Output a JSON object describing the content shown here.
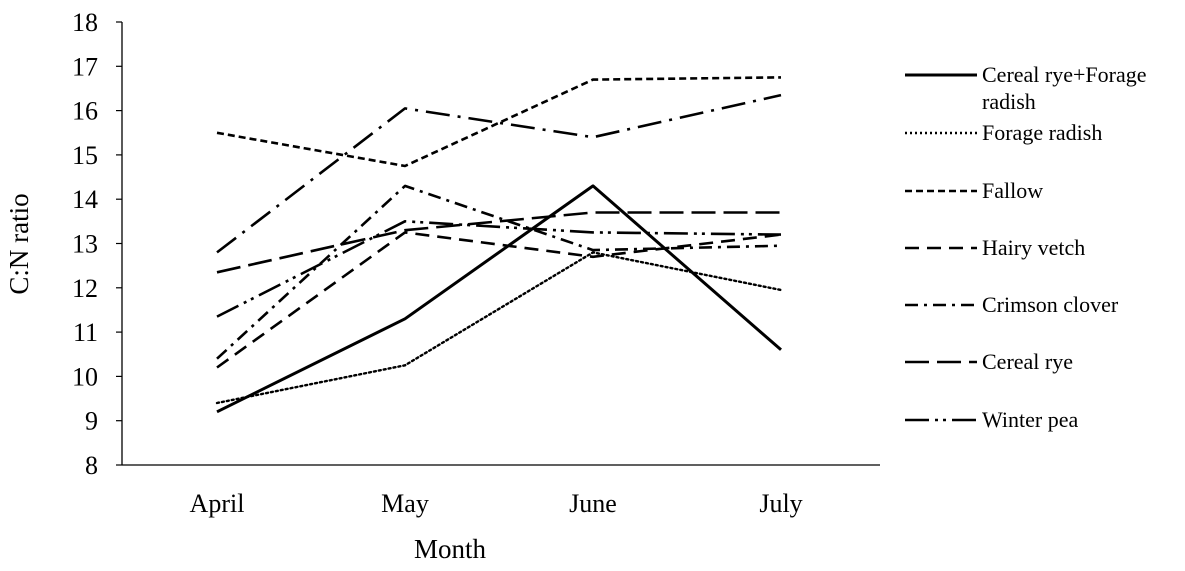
{
  "chart_data": {
    "type": "line",
    "title": "",
    "xlabel": "Month",
    "ylabel": "C:N  ratio",
    "ylim": [
      8,
      18
    ],
    "yticks": [
      8,
      9,
      10,
      11,
      12,
      13,
      14,
      15,
      16,
      17,
      18
    ],
    "categories": [
      "April",
      "May",
      "June",
      "July"
    ],
    "legend_position": "right",
    "grid": false,
    "series": [
      {
        "name": "Cereal rye+Forage radish",
        "legend_lines": [
          "Cereal rye+Forage",
          "radish"
        ],
        "values": [
          9.2,
          11.3,
          14.3,
          10.6
        ],
        "dash": "solid"
      },
      {
        "name": "Forage radish",
        "values": [
          9.4,
          10.25,
          12.8,
          11.95
        ],
        "dash": "dotted"
      },
      {
        "name": "Fallow",
        "values": [
          15.5,
          14.75,
          16.7,
          16.75
        ],
        "dash": "short-dash"
      },
      {
        "name": "Hairy vetch",
        "values": [
          10.2,
          13.25,
          12.7,
          13.2
        ],
        "dash": "medium-dash"
      },
      {
        "name": "Crimson clover",
        "values": [
          10.4,
          14.3,
          12.85,
          12.95
        ],
        "dash": "dash-dot"
      },
      {
        "name": "Cereal rye",
        "values": [
          12.35,
          13.3,
          13.7,
          13.7
        ],
        "dash": "long-dash"
      },
      {
        "name": "Winter pea",
        "values": [
          11.35,
          13.5,
          13.25,
          13.2
        ],
        "dash": "long-dash-dot-dot"
      },
      {
        "name": "",
        "values": [
          12.8,
          16.05,
          15.4,
          16.35
        ],
        "dash": "long-dash-dot"
      }
    ]
  }
}
